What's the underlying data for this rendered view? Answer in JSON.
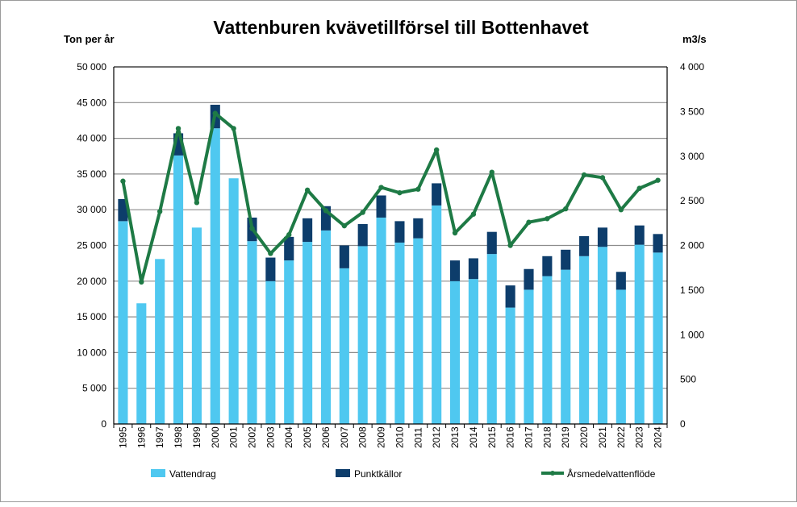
{
  "chart_data": {
    "type": "bar",
    "title": "Vattenburen kvävetillförsel till Bottenhavet",
    "ylabel": "Ton per år",
    "y2label": "m3/s",
    "ylim": [
      0,
      50000
    ],
    "y2lim": [
      0,
      4000
    ],
    "yticks": [
      "0",
      "5 000",
      "10 000",
      "15 000",
      "20 000",
      "25 000",
      "30 000",
      "35 000",
      "40 000",
      "45 000",
      "50 000"
    ],
    "y2ticks": [
      "0",
      "500",
      "1 000",
      "1 500",
      "2 000",
      "2 500",
      "3 000",
      "3 500",
      "4 000"
    ],
    "grid": true,
    "legend_position": "bottom",
    "categories": [
      "1995",
      "1996",
      "1997",
      "1998",
      "1999",
      "2000",
      "2001",
      "2002",
      "2003",
      "2004",
      "2005",
      "2006",
      "2007",
      "2008",
      "2009",
      "2010",
      "2011",
      "2012",
      "2013",
      "2014",
      "2015",
      "2016",
      "2017",
      "2018",
      "2019",
      "2020",
      "2021",
      "2022",
      "2023",
      "2024"
    ],
    "series": [
      {
        "name": "Vattendrag",
        "type": "stacked-bar",
        "axis": "left",
        "color": "#4fc8f0",
        "values": [
          28400,
          16900,
          23100,
          37600,
          27500,
          41400,
          34400,
          25600,
          20000,
          22900,
          25500,
          27100,
          21800,
          24900,
          28900,
          25400,
          26000,
          30600,
          20000,
          20300,
          23800,
          16300,
          18800,
          20700,
          21600,
          23500,
          24800,
          18800,
          25100,
          24000
        ]
      },
      {
        "name": "Punktkällor",
        "type": "stacked-bar",
        "axis": "left",
        "color": "#0d3d6b",
        "values": [
          3100,
          0,
          0,
          3100,
          0,
          3300,
          0,
          3300,
          3300,
          3300,
          3300,
          3400,
          3200,
          3100,
          3100,
          3000,
          2800,
          3100,
          2900,
          2900,
          3100,
          3100,
          2900,
          2800,
          2800,
          2800,
          2700,
          2500,
          2700,
          2600
        ]
      },
      {
        "name": "Årsmedelvattenflöde",
        "type": "line",
        "axis": "right",
        "color": "#1e7a45",
        "values": [
          2720,
          1590,
          2380,
          3310,
          2480,
          3480,
          3310,
          2190,
          1910,
          2120,
          2620,
          2390,
          2220,
          2370,
          2650,
          2590,
          2630,
          3070,
          2140,
          2350,
          2820,
          2000,
          2260,
          2300,
          2410,
          2790,
          2760,
          2400,
          2640,
          2730
        ]
      }
    ]
  }
}
